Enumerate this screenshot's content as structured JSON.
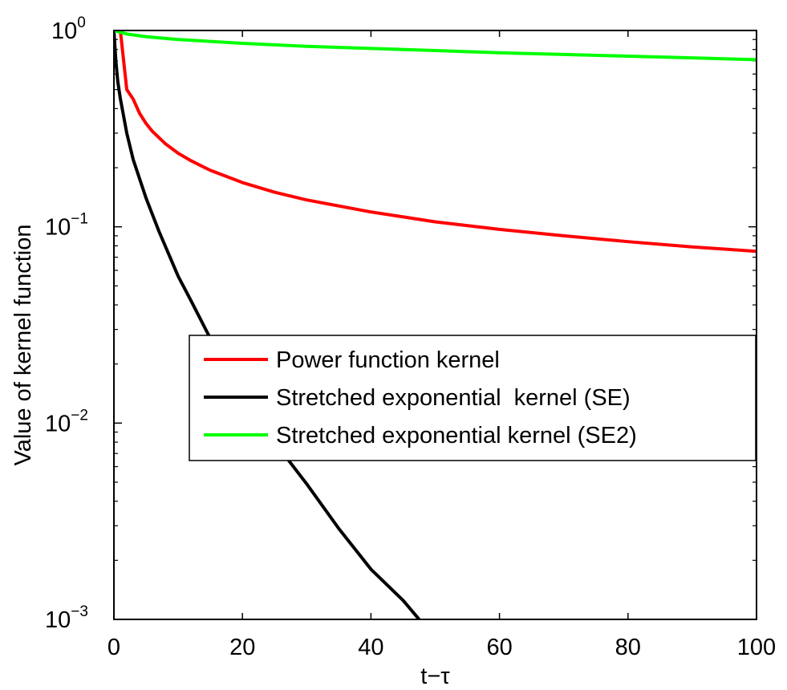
{
  "chart_data": {
    "type": "line",
    "title": "",
    "xlabel": "t−τ",
    "ylabel": "Value of kernel function",
    "xlim": [
      0,
      100
    ],
    "ylim": [
      0.001,
      1
    ],
    "yscale": "log",
    "grid": false,
    "legend_position": "center-right",
    "x_ticks": [
      0,
      20,
      40,
      60,
      80,
      100
    ],
    "x_tick_labels": [
      "0",
      "20",
      "40",
      "60",
      "80",
      "100"
    ],
    "y_ticks": [
      0.001,
      0.01,
      0.1,
      1
    ],
    "y_tick_labels": [
      {
        "base": "10",
        "exp": "−3"
      },
      {
        "base": "10",
        "exp": "−2"
      },
      {
        "base": "10",
        "exp": "−1"
      },
      {
        "base": "10",
        "exp": "0"
      }
    ],
    "series": [
      {
        "name": "Power function kernel",
        "color": "#ff0000",
        "x": [
          1,
          1.5,
          2,
          3,
          4,
          5,
          6,
          8,
          10,
          12,
          15,
          20,
          25,
          30,
          40,
          50,
          60,
          70,
          80,
          90,
          100
        ],
        "y": [
          1,
          0.707,
          0.5,
          0.447,
          0.378,
          0.336,
          0.306,
          0.265,
          0.237,
          0.217,
          0.194,
          0.168,
          0.15,
          0.137,
          0.119,
          0.106,
          0.097,
          0.09,
          0.084,
          0.079,
          0.075
        ]
      },
      {
        "name": "Stretched exponential  kernel (SE)",
        "color": "#000000",
        "x": [
          0,
          0.3,
          0.6,
          1,
          2,
          3,
          5,
          7,
          10,
          12,
          15,
          20,
          25,
          30,
          35,
          40,
          45,
          47.5
        ],
        "y": [
          1,
          0.7,
          0.55,
          0.45,
          0.3,
          0.22,
          0.14,
          0.095,
          0.056,
          0.042,
          0.027,
          0.0135,
          0.008,
          0.0049,
          0.0029,
          0.0018,
          0.00125,
          0.001
        ]
      },
      {
        "name": "Stretched exponential kernel (SE2)",
        "color": "#00ff00",
        "x": [
          0,
          2,
          5,
          10,
          20,
          30,
          40,
          50,
          60,
          70,
          80,
          90,
          100
        ],
        "y": [
          1,
          0.96,
          0.93,
          0.9,
          0.86,
          0.83,
          0.81,
          0.79,
          0.77,
          0.755,
          0.74,
          0.725,
          0.71
        ]
      }
    ]
  }
}
